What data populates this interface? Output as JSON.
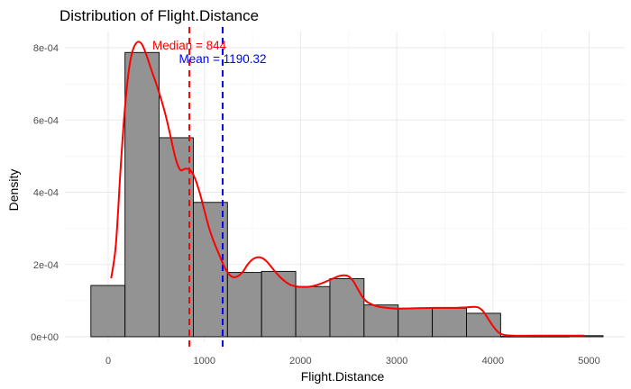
{
  "chart_data": {
    "type": "histogram",
    "title": "Distribution of Flight.Distance",
    "xlabel": "Flight.Distance",
    "ylabel": "Density",
    "xlim": [
      -450,
      5370
    ],
    "ylim": [
      -1.5e-05,
      0.000845
    ],
    "x_ticks": [
      {
        "value": 0,
        "label": "0"
      },
      {
        "value": 1000,
        "label": "1000"
      },
      {
        "value": 2000,
        "label": "2000"
      },
      {
        "value": 3000,
        "label": "3000"
      },
      {
        "value": 4000,
        "label": "4000"
      },
      {
        "value": 5000,
        "label": "5000"
      }
    ],
    "y_ticks": [
      {
        "value": 0,
        "label": "0e+00"
      },
      {
        "value": 0.0002,
        "label": "2e-04"
      },
      {
        "value": 0.0004,
        "label": "4e-04"
      },
      {
        "value": 0.0006,
        "label": "6e-04"
      },
      {
        "value": 0.0008,
        "label": "8e-04"
      }
    ],
    "grid": true,
    "bins": [
      {
        "x0": -180,
        "x1": 175,
        "density": 0.000142
      },
      {
        "x0": 175,
        "x1": 530,
        "density": 0.000787
      },
      {
        "x0": 530,
        "x1": 885,
        "density": 0.000551
      },
      {
        "x0": 885,
        "x1": 1240,
        "density": 0.000372
      },
      {
        "x0": 1240,
        "x1": 1595,
        "density": 0.000178
      },
      {
        "x0": 1595,
        "x1": 1950,
        "density": 0.000181
      },
      {
        "x0": 1950,
        "x1": 2305,
        "density": 0.000139
      },
      {
        "x0": 2305,
        "x1": 2660,
        "density": 0.000161
      },
      {
        "x0": 2660,
        "x1": 3015,
        "density": 8.8e-05
      },
      {
        "x0": 3015,
        "x1": 3370,
        "density": 7.9e-05
      },
      {
        "x0": 3370,
        "x1": 3725,
        "density": 7.9e-05
      },
      {
        "x0": 3725,
        "x1": 4080,
        "density": 6.5e-05
      },
      {
        "x0": 4080,
        "x1": 4435,
        "density": 1e-06
      },
      {
        "x0": 4435,
        "x1": 4790,
        "density": 1e-06
      },
      {
        "x0": 4790,
        "x1": 5145,
        "density": 3e-06
      }
    ],
    "bar_fill": "#939393",
    "bar_stroke": "#000000",
    "density_curve": {
      "color": "#ff0000",
      "points": [
        [
          31,
          0.000162
        ],
        [
          80,
          0.000255
        ],
        [
          130,
          0.00047
        ],
        [
          170,
          0.00062
        ],
        [
          210,
          0.000728
        ],
        [
          250,
          0.000788
        ],
        [
          300,
          0.000815
        ],
        [
          350,
          0.00081
        ],
        [
          400,
          0.000778
        ],
        [
          450,
          0.000738
        ],
        [
          500,
          0.0007
        ],
        [
          550,
          0.000658
        ],
        [
          600,
          0.00061
        ],
        [
          650,
          0.000553
        ],
        [
          700,
          0.000494
        ],
        [
          750,
          0.000462
        ],
        [
          800,
          0.000465
        ],
        [
          850,
          0.000462
        ],
        [
          900,
          0.00044
        ],
        [
          950,
          0.0004
        ],
        [
          1000,
          0.00035
        ],
        [
          1050,
          0.0003
        ],
        [
          1100,
          0.000262
        ],
        [
          1150,
          0.00023
        ],
        [
          1200,
          0.000198
        ],
        [
          1250,
          0.000175
        ],
        [
          1300,
          0.000165
        ],
        [
          1350,
          0.000168
        ],
        [
          1400,
          0.00018
        ],
        [
          1450,
          0.0002
        ],
        [
          1500,
          0.000214
        ],
        [
          1550,
          0.00022
        ],
        [
          1600,
          0.000218
        ],
        [
          1650,
          0.000208
        ],
        [
          1700,
          0.000192
        ],
        [
          1750,
          0.000176
        ],
        [
          1800,
          0.000162
        ],
        [
          1850,
          0.000151
        ],
        [
          1900,
          0.000143
        ],
        [
          1950,
          0.00014
        ],
        [
          2000,
          0.000138
        ],
        [
          2100,
          0.000139
        ],
        [
          2200,
          0.000146
        ],
        [
          2300,
          0.000157
        ],
        [
          2400,
          0.000168
        ],
        [
          2450,
          0.00017
        ],
        [
          2500,
          0.000167
        ],
        [
          2550,
          0.000153
        ],
        [
          2600,
          0.00013
        ],
        [
          2650,
          0.000108
        ],
        [
          2700,
          9.5e-05
        ],
        [
          2800,
          8.4e-05
        ],
        [
          2900,
          8e-05
        ],
        [
          3000,
          7.8e-05
        ],
        [
          3200,
          7.9e-05
        ],
        [
          3400,
          8e-05
        ],
        [
          3600,
          8e-05
        ],
        [
          3700,
          8.1e-05
        ],
        [
          3800,
          8.3e-05
        ],
        [
          3850,
          8.1e-05
        ],
        [
          3900,
          7e-05
        ],
        [
          3950,
          5e-05
        ],
        [
          4000,
          3e-05
        ],
        [
          4050,
          1.4e-05
        ],
        [
          4100,
          6e-06
        ],
        [
          4200,
          3e-06
        ],
        [
          4400,
          3e-06
        ],
        [
          4600,
          3e-06
        ],
        [
          4800,
          3e-06
        ],
        [
          4950,
          3e-06
        ]
      ]
    },
    "reference_lines": [
      {
        "name": "median",
        "value": 844,
        "color": "#ff0000",
        "label": "Median = 844"
      },
      {
        "name": "mean",
        "value": 1190.32,
        "color": "#0000ff",
        "label": "Mean = 1190.32"
      }
    ]
  }
}
